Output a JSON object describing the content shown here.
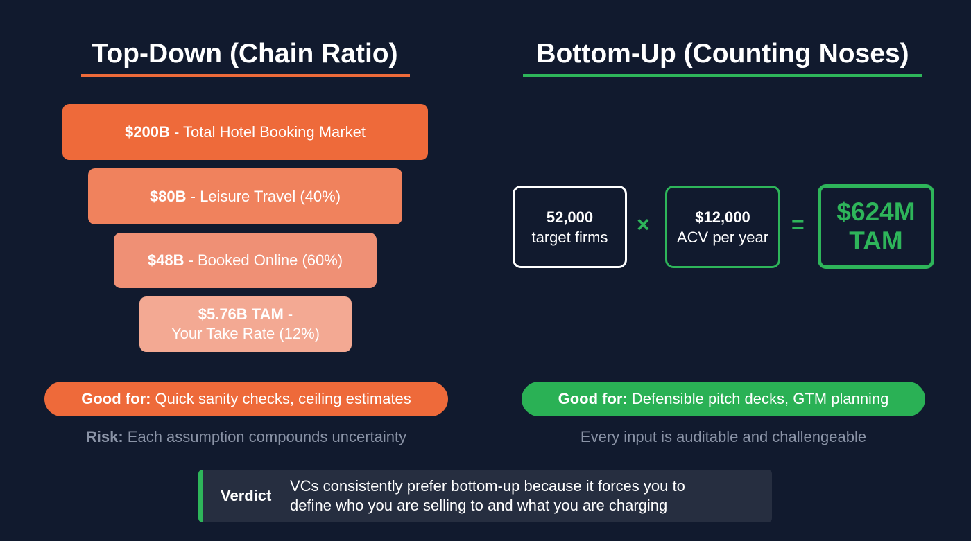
{
  "colors": {
    "background": "#111a2e",
    "orange": "#ee6a3a",
    "green": "#2eb55a"
  },
  "top_down": {
    "title": "Top-Down (Chain Ratio)",
    "funnel": [
      {
        "value": "$200B",
        "label": " - Total Hotel Booking Market"
      },
      {
        "value": "$80B",
        "label": " - Leisure Travel (40%)"
      },
      {
        "value": "$48B",
        "label": " - Booked Online (60%)"
      },
      {
        "value": "$5.76B TAM",
        "label": " -",
        "label2": "Your Take Rate (12%)"
      }
    ],
    "good_for_label": "Good for:",
    "good_for_text": " Quick sanity checks, ceiling estimates",
    "risk_label": "Risk:",
    "risk_text": " Each assumption compounds uncertainty"
  },
  "bottom_up": {
    "title": "Bottom-Up (Counting Noses)",
    "box1": {
      "value": "52,000",
      "label": "target firms"
    },
    "times": "×",
    "box2": {
      "value": "$12,000",
      "label": "ACV per year"
    },
    "equals": "=",
    "result": {
      "value": "$624M",
      "label": "TAM"
    },
    "good_for_label": "Good for:",
    "good_for_text": " Defensible pitch decks, GTM planning",
    "note": "Every input is auditable and challengeable"
  },
  "verdict": {
    "label": "Verdict",
    "line1": "VCs consistently prefer bottom-up because it forces you to",
    "line2": "define who you are selling to and what you are charging"
  }
}
